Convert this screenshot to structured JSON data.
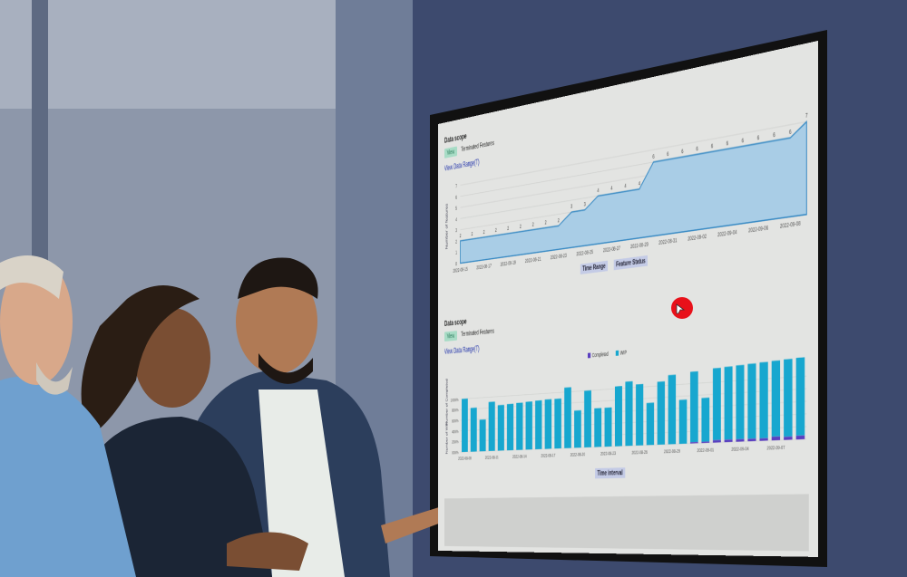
{
  "screen": {
    "line_section": {
      "title": "Data scope",
      "badge": "View",
      "badge_text": "Terminated Features",
      "link": "View Data Range(T)",
      "ylabel": "Number of features",
      "buttons": [
        "Time Range",
        "Feature Status"
      ]
    },
    "bar_section": {
      "title": "Data scope",
      "badge": "View",
      "badge_text": "Terminated Features",
      "link": "View Data Range(T)",
      "ylabels": [
        "Number of Completed",
        "Number of WIP"
      ],
      "button": "Time interval"
    }
  },
  "chart_data": [
    {
      "type": "area",
      "x": [
        "2022-08-15",
        "2022-08-16",
        "2022-08-17",
        "2022-08-18",
        "2022-08-19",
        "2022-08-20",
        "2022-08-21",
        "2022-08-22",
        "2022-08-23",
        "2022-08-24",
        "2022-08-25",
        "2022-08-26",
        "2022-08-27",
        "2022-08-28",
        "2022-08-29",
        "2022-08-30",
        "2022-08-31",
        "2022-09-01",
        "2022-09-02",
        "2022-09-03",
        "2022-09-04",
        "2022-09-05",
        "2022-09-06",
        "2022-09-07",
        "2022-09-08",
        "2022-09-09"
      ],
      "values": [
        2,
        2,
        2,
        2,
        2,
        2,
        2,
        2,
        2,
        3,
        3,
        4,
        4,
        4,
        4,
        6,
        6,
        6,
        6,
        6,
        6,
        6,
        6,
        6,
        6,
        7
      ],
      "x_ticks": [
        "2022-08-15",
        "2022-08-17",
        "2022-08-19",
        "2022-08-21",
        "2022-08-23",
        "2022-08-25",
        "2022-08-27",
        "2022-08-29",
        "2022-08-31",
        "2022-09-02",
        "2022-09-04",
        "2022-09-06",
        "2022-09-08"
      ],
      "y_ticks": [
        "0",
        "1",
        "2",
        "3",
        "4",
        "5",
        "6",
        "7"
      ],
      "ylim": [
        0,
        7
      ],
      "grid": true,
      "color": "#a9cde6"
    },
    {
      "type": "bar",
      "stacked": true,
      "legend": [
        "Completed",
        "WIP"
      ],
      "legend_position": "top-center",
      "colors": {
        "Completed": "#5a3fc0",
        "WIP": "#17a7cf"
      },
      "x_ticks": [
        "2022-08-08",
        "2022-08-11",
        "2022-08-14",
        "2022-08-17",
        "2022-08-20",
        "2022-08-23",
        "2022-08-26",
        "2022-08-29",
        "2022-09-01",
        "2022-09-04",
        "2022-09-07"
      ],
      "y_ticks": [
        "000%",
        "200%",
        "400%",
        "600%",
        "800%",
        "1000%"
      ],
      "ylim": [
        0,
        1300
      ],
      "series": [
        {
          "name": "Completed",
          "values": [
            0,
            0,
            0,
            0,
            0,
            0,
            0,
            0,
            0,
            0,
            0,
            0,
            0,
            0,
            0,
            0,
            0,
            0,
            0,
            0,
            0,
            0,
            0,
            20,
            20,
            40,
            40,
            40,
            40,
            40,
            60,
            50,
            60
          ]
        },
        {
          "name": "WIP",
          "values": [
            1000,
            820,
            590,
            910,
            840,
            850,
            860,
            870,
            880,
            890,
            890,
            1080,
            660,
            1000,
            680,
            680,
            1040,
            1110,
            1050,
            720,
            1070,
            1170,
            740,
            1180,
            730,
            1190,
            1200,
            1210,
            1220,
            1230,
            1220,
            1240,
            1240
          ]
        }
      ]
    }
  ],
  "colors": {
    "wall": "#3d4a6e",
    "screen_bg": "#e3e4e2",
    "cursor": "#e8111a"
  }
}
